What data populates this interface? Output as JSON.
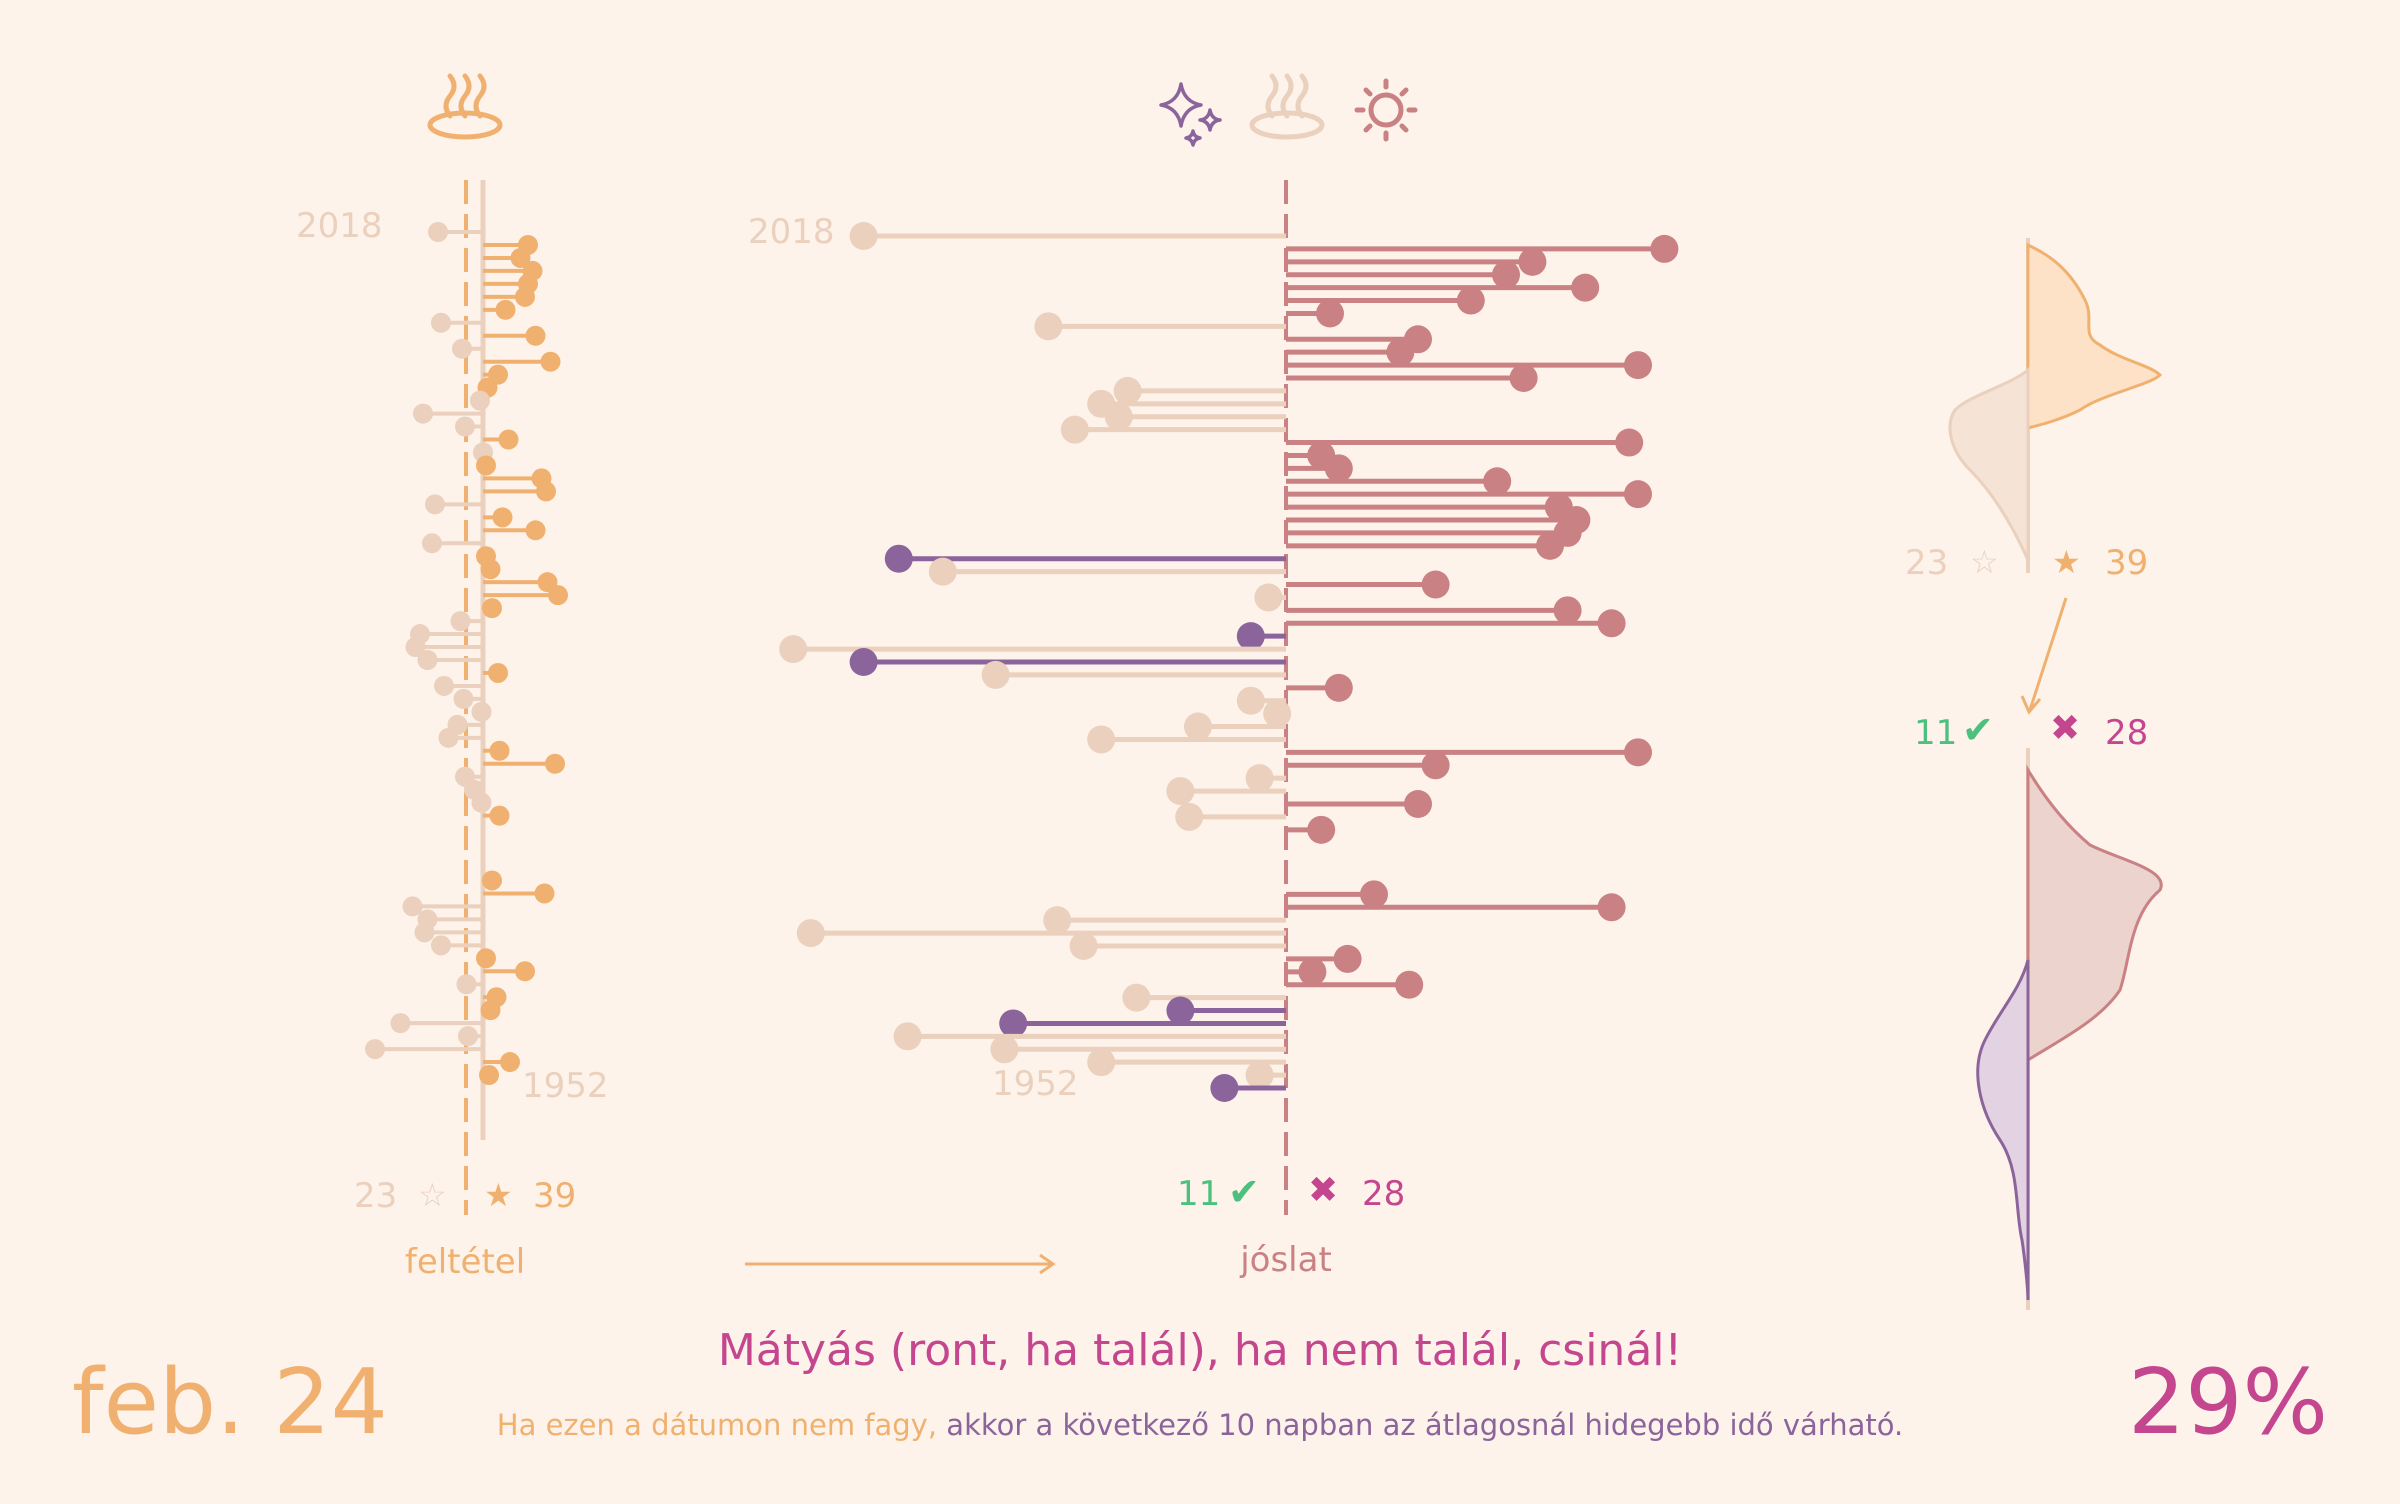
{
  "colors": {
    "background": "#fdf3ea",
    "condition_met": "#f0b170",
    "condition_not_met": "#ead0bd",
    "pred_hit": "#8c649c",
    "pred_miss": "#c98184",
    "pred_neutral": "#ead0bd",
    "check": "#4cc07e",
    "cross": "#c4468f",
    "title_date": "#f0b170",
    "percent": "#c4468f",
    "subtitle_a": "#f0b170",
    "subtitle_b": "#8c649c"
  },
  "icons": {
    "condition_header": "hot-springs-icon",
    "prediction_header": [
      "sparkles-icon",
      "hot-springs-icon",
      "sun-icon"
    ],
    "pred_hit_mark": "check-icon",
    "pred_miss_mark": "cross-icon",
    "cond_met_mark": "filled-star-icon",
    "cond_not_met_mark": "outline-star-icon"
  },
  "left_panel": {
    "year_top": "2018",
    "year_bottom": "1952",
    "count_not_met": "23",
    "count_met": "39",
    "axis_label": "feltétel"
  },
  "mid_panel": {
    "year_top": "2018",
    "year_bottom": "1952",
    "count_hit": "11",
    "count_miss": "28",
    "axis_label": "jóslat"
  },
  "right_panel": {
    "count_not_met": "23",
    "count_met": "39",
    "count_hit": "11",
    "count_miss": "28"
  },
  "footer": {
    "date": "feb. 24",
    "saying": "Mátyás (ront, ha talál), ha nem talál, csinál!",
    "explain_part1": "Ha ezen a dátumon nem fagy,",
    "explain_part2": "akkor a következő 10 napban az átlagosnál hidegebb idő várható.",
    "percent": "29%"
  },
  "chart_data": [
    {
      "type": "dot-plot",
      "name": "feltétel",
      "years": [
        2018,
        2017,
        2016,
        2015,
        2014,
        2013,
        2012,
        2011,
        2010,
        2009,
        2008,
        2007,
        2006,
        2005,
        2004,
        2003,
        2002,
        2001,
        2000,
        1999,
        1998,
        1997,
        1996,
        1995,
        1994,
        1993,
        1992,
        1991,
        1990,
        1989,
        1988,
        1987,
        1986,
        1985,
        1984,
        1983,
        1982,
        1981,
        1980,
        1979,
        1978,
        1977,
        1976,
        1975,
        1974,
        1973,
        1972,
        1971,
        1970,
        1969,
        1968,
        1967,
        1966,
        1965,
        1964,
        1963,
        1962,
        1961,
        1960,
        1959,
        1958,
        1957,
        1956,
        1955,
        1954,
        1953,
        1952
      ],
      "values": [
        -3,
        3,
        2.5,
        3.3,
        3,
        2.8,
        1.5,
        -2.8,
        3.5,
        -1.4,
        4.5,
        1,
        0.3,
        -0.2,
        -4,
        -1.2,
        1.7,
        0,
        0.2,
        3.9,
        4.2,
        -3.2,
        1.3,
        3.5,
        -3.4,
        0.2,
        0.5,
        4.3,
        5,
        0.6,
        -1.5,
        -4.2,
        -4.5,
        -3.7,
        1,
        -2.6,
        -1.3,
        -0.1,
        -1.7,
        -2.3,
        1.1,
        4.8,
        -1.2,
        -0.6,
        -0.1,
        1.1,
        null,
        null,
        null,
        null,
        0.6,
        4.1,
        -4.7,
        -3.7,
        -3.9,
        -2.8,
        0.2,
        2.8,
        -1.1,
        0.9,
        0.5,
        -5.5,
        -1,
        -7.2,
        1.8,
        0.4,
        null
      ],
      "value_meaning": "temperature on feb. 24 relative to freezing (°C)",
      "summary": {
        "not_met": 23,
        "met": 39
      }
    },
    {
      "type": "dot-plot",
      "name": "jóslat",
      "years": [
        2018,
        2017,
        2016,
        2015,
        2014,
        2013,
        2012,
        2011,
        2010,
        2009,
        2008,
        2007,
        2006,
        2005,
        2004,
        2003,
        2002,
        2001,
        2000,
        1999,
        1998,
        1997,
        1996,
        1995,
        1994,
        1993,
        1992,
        1991,
        1990,
        1989,
        1988,
        1987,
        1986,
        1985,
        1984,
        1983,
        1982,
        1981,
        1980,
        1979,
        1978,
        1977,
        1976,
        1975,
        1974,
        1973,
        1972,
        1971,
        1970,
        1969,
        1968,
        1967,
        1966,
        1965,
        1964,
        1963,
        1962,
        1961,
        1960,
        1959,
        1958,
        1957,
        1956,
        1955,
        1954,
        1953,
        1952
      ],
      "values": [
        -4.8,
        4.3,
        2.8,
        2.5,
        3.4,
        2.1,
        0.5,
        -2.7,
        1.5,
        1.3,
        4,
        2.7,
        -1.8,
        -2.1,
        -1.9,
        -2.4,
        3.9,
        0.4,
        0.6,
        2.4,
        4,
        3.1,
        3.3,
        3.2,
        3,
        -4.4,
        -3.9,
        1.7,
        -0.2,
        3.2,
        3.7,
        -0.4,
        -5.6,
        -4.8,
        -3.3,
        0.6,
        -0.4,
        -0.1,
        -1,
        -2.1,
        4,
        1.7,
        -0.3,
        -1.2,
        1.5,
        -1.1,
        0.4,
        null,
        null,
        null,
        null,
        1.0,
        3.7,
        -2.6,
        -5.4,
        -2.3,
        0.7,
        0.3,
        1.4,
        -1.7,
        -1.2,
        -3.1,
        -4.3,
        -3.2,
        -2.1,
        -0.3,
        -0.7
      ],
      "value_meaning": "temperature anomaly in the following 10 days (°C)",
      "summary": {
        "hit": 11,
        "miss": 28
      }
    }
  ]
}
